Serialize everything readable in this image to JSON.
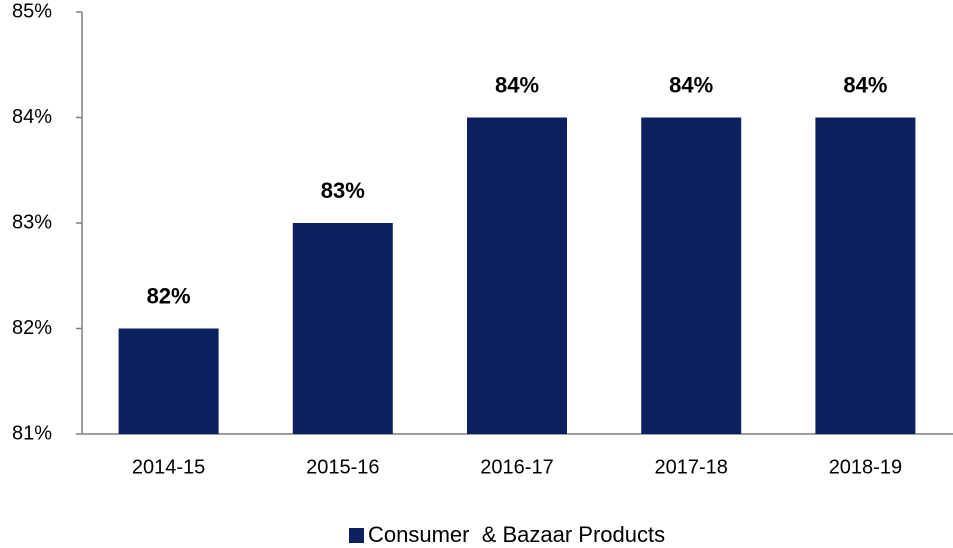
{
  "chart_data": {
    "type": "bar",
    "categories": [
      "2014-15",
      "2015-16",
      "2016-17",
      "2017-18",
      "2018-19"
    ],
    "series": [
      {
        "name": "Consumer  & Bazaar Products",
        "color": "#0c1f5e",
        "values": [
          82,
          83,
          84,
          84,
          84
        ],
        "value_labels": [
          "82%",
          "83%",
          "84%",
          "84%",
          "84%"
        ]
      }
    ],
    "ylim": [
      81,
      85
    ],
    "yticks": [
      {
        "value": 81,
        "label": "81%"
      },
      {
        "value": 82,
        "label": "82%"
      },
      {
        "value": 83,
        "label": "83%"
      },
      {
        "value": 84,
        "label": "84%"
      },
      {
        "value": 85,
        "label": "85%"
      }
    ],
    "grid": false,
    "legend": "bottom"
  }
}
